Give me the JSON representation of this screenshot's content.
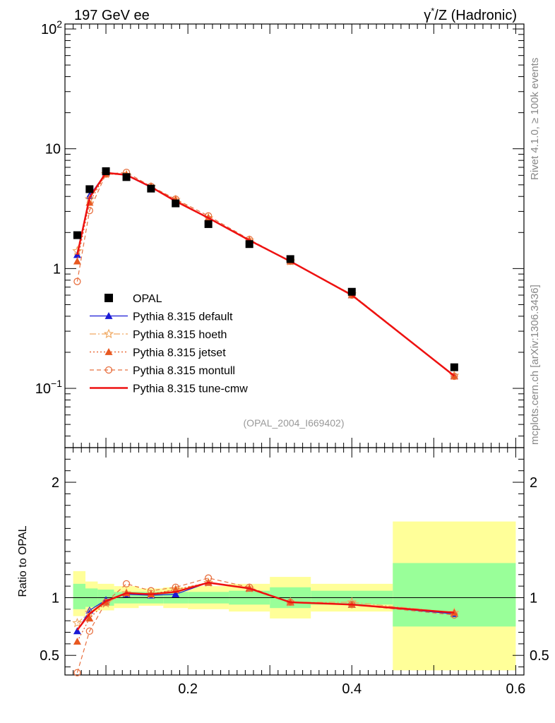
{
  "header": {
    "left_title": "197 GeV ee",
    "right_title_greek": "γ",
    "right_title_sup": "*",
    "right_title_rest": "/Z (Hadronic)"
  },
  "side_labels": {
    "rivet": "Rivet 4.1.0, ≥ 100k events",
    "mcplots": "mcplots.cern.ch [arXiv:1306.3436]"
  },
  "analysis_tag": "(OPAL_2004_I669402)",
  "colors": {
    "data": "#000000",
    "default": "#1a1ad6",
    "hoeth": "#f0a860",
    "jetset": "#e85820",
    "montull": "#e87040",
    "cmw": "#ee1111",
    "band_inner": "#99ff99",
    "band_outer": "#ffff99"
  },
  "chart_data": [
    {
      "type": "scatter",
      "panel": "main",
      "yscale": "log",
      "xlim": [
        0.05,
        0.61
      ],
      "ylim": [
        0.032,
        110
      ],
      "y_ticks": [
        {
          "value": 0.1,
          "mantissa": "10",
          "exponent": "−1"
        },
        {
          "value": 1,
          "mantissa": "1",
          "exponent": ""
        },
        {
          "value": 10,
          "mantissa": "10",
          "exponent": ""
        },
        {
          "value": 100,
          "mantissa": "10",
          "exponent": "2"
        }
      ],
      "x": [
        0.065,
        0.08,
        0.1,
        0.125,
        0.155,
        0.185,
        0.225,
        0.275,
        0.325,
        0.4,
        0.525
      ],
      "series": [
        {
          "name": "OPAL",
          "key": "data",
          "marker": "square",
          "values": [
            1.9,
            4.6,
            6.5,
            5.8,
            4.65,
            3.5,
            2.35,
            1.6,
            1.2,
            0.64,
            0.15
          ]
        },
        {
          "name": "Pythia 8.315 default",
          "key": "default",
          "marker": "triangle",
          "dash": "",
          "values": [
            1.3,
            4.05,
            6.3,
            6.0,
            4.75,
            3.65,
            2.65,
            1.72,
            1.15,
            0.6,
            0.127
          ]
        },
        {
          "name": "Pythia 8.315 hoeth",
          "key": "hoeth",
          "marker": "star",
          "dash": "9,3,2,3",
          "values": [
            1.4,
            3.8,
            6.15,
            6.05,
            4.8,
            3.75,
            2.65,
            1.72,
            1.15,
            0.61,
            0.128
          ]
        },
        {
          "name": "Pythia 8.315 jetset",
          "key": "jetset",
          "marker": "triangle",
          "dash": "2,3",
          "values": [
            1.15,
            3.55,
            6.2,
            6.05,
            4.8,
            3.75,
            2.65,
            1.72,
            1.15,
            0.6,
            0.126
          ]
        },
        {
          "name": "Pythia 8.315 montull",
          "key": "montull",
          "marker": "circle",
          "dash": "6,4",
          "values": [
            0.78,
            3.05,
            6.15,
            6.35,
            4.85,
            3.8,
            2.75,
            1.75,
            1.15,
            0.6,
            0.126
          ]
        },
        {
          "name": "Pythia 8.315 tune-cmw",
          "key": "cmw",
          "marker": "none",
          "dash": "",
          "values": [
            1.3,
            3.9,
            6.3,
            6.05,
            4.8,
            3.65,
            2.65,
            1.72,
            1.15,
            0.6,
            0.127
          ]
        }
      ],
      "title": "",
      "xlabel": "",
      "ylabel": "",
      "legend_position": "lower-left"
    },
    {
      "type": "line",
      "panel": "ratio",
      "ylabel": "Ratio to OPAL",
      "xlim": [
        0.05,
        0.61
      ],
      "ylim": [
        0.33,
        2.3
      ],
      "y_ticks": [
        {
          "value": 0.5,
          "label": "0.5"
        },
        {
          "value": 1,
          "label": "1"
        },
        {
          "value": 2,
          "label": "2"
        }
      ],
      "x_ticks": [
        {
          "value": 0.2,
          "label": "0.2"
        },
        {
          "value": 0.4,
          "label": "0.4"
        },
        {
          "value": 0.6,
          "label": "0.6"
        }
      ],
      "bins": [
        {
          "lo": 0.06,
          "hi": 0.075,
          "inner": [
            0.9,
            1.12
          ],
          "outer": [
            0.84,
            1.23
          ]
        },
        {
          "lo": 0.075,
          "hi": 0.09,
          "inner": [
            0.92,
            1.08
          ],
          "outer": [
            0.88,
            1.14
          ]
        },
        {
          "lo": 0.09,
          "hi": 0.11,
          "inner": [
            0.93,
            1.07
          ],
          "outer": [
            0.89,
            1.12
          ]
        },
        {
          "lo": 0.11,
          "hi": 0.14,
          "inner": [
            0.95,
            1.05
          ],
          "outer": [
            0.91,
            1.1
          ]
        },
        {
          "lo": 0.14,
          "hi": 0.17,
          "inner": [
            0.95,
            1.05
          ],
          "outer": [
            0.93,
            1.08
          ]
        },
        {
          "lo": 0.17,
          "hi": 0.2,
          "inner": [
            0.95,
            1.05
          ],
          "outer": [
            0.91,
            1.09
          ]
        },
        {
          "lo": 0.2,
          "hi": 0.25,
          "inner": [
            0.95,
            1.05
          ],
          "outer": [
            0.9,
            1.1
          ]
        },
        {
          "lo": 0.25,
          "hi": 0.3,
          "inner": [
            0.94,
            1.06
          ],
          "outer": [
            0.88,
            1.12
          ]
        },
        {
          "lo": 0.3,
          "hi": 0.35,
          "inner": [
            0.91,
            1.09
          ],
          "outer": [
            0.82,
            1.18
          ]
        },
        {
          "lo": 0.35,
          "hi": 0.45,
          "inner": [
            0.94,
            1.06
          ],
          "outer": [
            0.88,
            1.12
          ]
        },
        {
          "lo": 0.45,
          "hi": 0.6,
          "inner": [
            0.75,
            1.3
          ],
          "outer": [
            0.37,
            1.66
          ]
        }
      ],
      "x": [
        0.065,
        0.08,
        0.1,
        0.125,
        0.155,
        0.185,
        0.225,
        0.275,
        0.325,
        0.4,
        0.525
      ],
      "series": [
        {
          "key": "default",
          "values": [
            0.71,
            0.89,
            0.98,
            1.03,
            1.02,
            1.03,
            1.13,
            1.08,
            0.96,
            0.94,
            0.86
          ]
        },
        {
          "key": "hoeth",
          "values": [
            0.78,
            0.87,
            0.95,
            1.04,
            1.03,
            1.07,
            1.13,
            1.08,
            0.96,
            0.96,
            0.87
          ]
        },
        {
          "key": "jetset",
          "values": [
            0.62,
            0.82,
            0.96,
            1.04,
            1.03,
            1.07,
            1.13,
            1.08,
            0.96,
            0.94,
            0.87
          ]
        },
        {
          "key": "montull",
          "values": [
            0.35,
            0.71,
            0.96,
            1.12,
            1.06,
            1.09,
            1.17,
            1.09,
            0.96,
            0.94,
            0.85
          ]
        },
        {
          "key": "cmw",
          "values": [
            0.72,
            0.86,
            0.97,
            1.04,
            1.03,
            1.05,
            1.13,
            1.08,
            0.96,
            0.94,
            0.87
          ]
        }
      ]
    }
  ]
}
